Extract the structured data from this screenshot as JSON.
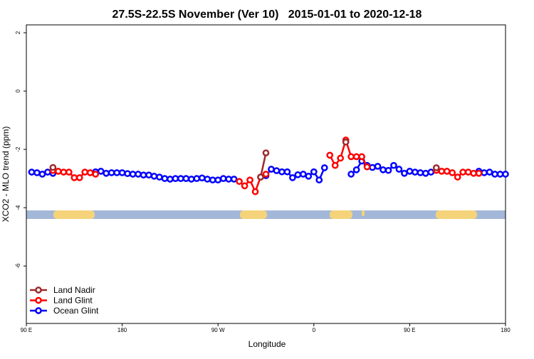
{
  "chart_data": {
    "type": "line",
    "title": "27.5S-22.5S November (Ver 10)   2015-01-01 to 2020-12-18",
    "x_label": "Longitude",
    "y_label": "XCO2 - MLO trend (ppm)",
    "xlim": [
      90,
      540
    ],
    "xticks": [
      {
        "value": 90,
        "label": "90 E"
      },
      180,
      {
        "value": 270,
        "label": "90 W"
      },
      {
        "value": 360,
        "label": "0"
      },
      {
        "value": 450,
        "label": "90 E"
      },
      {
        "value": 540,
        "label": "180"
      }
    ],
    "ylim": [
      -7.97,
      2.27
    ],
    "yticks": [
      -6,
      -4,
      -2,
      0,
      2
    ],
    "legend": "bottom-left",
    "series": [
      {
        "name": "Land Nadir",
        "color": "#9b2b2b",
        "x": [
          115,
          120,
          310,
          315,
          320,
          390,
          395,
          475
        ],
        "values": [
          -2.62,
          null,
          -2.95,
          -2.12,
          null,
          -1.75,
          null,
          -2.63
        ]
      },
      {
        "name": "Land Glint",
        "color": "#ff0000",
        "x": [
          115,
          120,
          125,
          130,
          135,
          140,
          145,
          150,
          155,
          160,
          290,
          295,
          300,
          305,
          310,
          315,
          320,
          375,
          380,
          385,
          390,
          395,
          400,
          405,
          410,
          415,
          475,
          480,
          485,
          490,
          495,
          500,
          505,
          510,
          515
        ],
        "values": [
          -2.72,
          -2.75,
          -2.78,
          -2.78,
          -2.97,
          -2.97,
          -2.78,
          -2.8,
          -2.85,
          null,
          -3.1,
          -3.25,
          -3.05,
          -3.45,
          -2.95,
          -2.85,
          null,
          -2.2,
          -2.55,
          -2.3,
          -1.68,
          -2.25,
          -2.25,
          -2.25,
          -2.6,
          null,
          -2.72,
          -2.75,
          -2.75,
          -2.8,
          -2.95,
          -2.78,
          -2.78,
          -2.82,
          -2.82
        ]
      },
      {
        "name": "Ocean Glint",
        "color": "#0000ff",
        "x": [
          95,
          100,
          105,
          110,
          115,
          120,
          125,
          130,
          135,
          140,
          145,
          150,
          155,
          160,
          165,
          170,
          175,
          180,
          185,
          190,
          195,
          200,
          205,
          210,
          215,
          220,
          225,
          230,
          235,
          240,
          245,
          250,
          255,
          260,
          265,
          270,
          275,
          280,
          285,
          290,
          295,
          300,
          305,
          310,
          315,
          320,
          325,
          330,
          335,
          340,
          345,
          350,
          355,
          360,
          365,
          370,
          375,
          380,
          385,
          390,
          395,
          400,
          405,
          410,
          415,
          420,
          425,
          430,
          435,
          440,
          445,
          450,
          455,
          460,
          465,
          470,
          475,
          480,
          485,
          490,
          495,
          500,
          505,
          510,
          515,
          520,
          525,
          530,
          535,
          540
        ],
        "values": [
          -2.78,
          -2.8,
          -2.85,
          -2.78,
          -2.82,
          null,
          null,
          null,
          null,
          null,
          null,
          null,
          -2.77,
          -2.75,
          -2.82,
          -2.8,
          -2.8,
          -2.8,
          -2.83,
          -2.85,
          -2.85,
          -2.88,
          -2.88,
          -2.92,
          -2.95,
          -3.0,
          -3.02,
          -3.0,
          -3.0,
          -3.0,
          -3.02,
          -3.0,
          -2.98,
          -3.02,
          -3.05,
          -3.05,
          -3.0,
          -3.02,
          -3.02,
          null,
          null,
          null,
          null,
          null,
          -2.9,
          -2.68,
          -2.73,
          -2.77,
          -2.77,
          -2.97,
          -2.87,
          -2.85,
          -2.92,
          -2.77,
          -3.05,
          -2.63,
          null,
          null,
          null,
          null,
          -2.85,
          -2.7,
          -2.4,
          -2.55,
          -2.62,
          -2.58,
          -2.7,
          -2.72,
          -2.55,
          -2.68,
          -2.82,
          -2.75,
          -2.78,
          -2.8,
          -2.82,
          -2.78,
          null,
          null,
          null,
          null,
          null,
          null,
          null,
          null,
          -2.75,
          -2.8,
          -2.78,
          -2.85,
          -2.85,
          -2.85
        ]
      }
    ]
  }
}
